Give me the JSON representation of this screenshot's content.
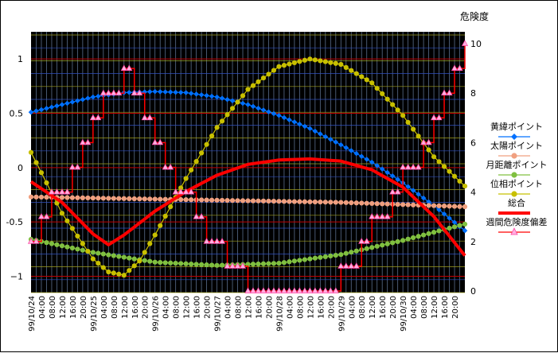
{
  "chart_data": {
    "type": "line",
    "title": "",
    "right_axis_title": "危険度",
    "x_tick_labels": [
      "99/10/24",
      "04:00",
      "08:00",
      "12:00",
      "16:00",
      "20:00",
      "99/10/25",
      "04:00",
      "08:00",
      "12:00",
      "16:00",
      "20:00",
      "99/10/26",
      "04:00",
      "08:00",
      "12:00",
      "16:00",
      "20:00",
      "99/10/27",
      "04:00",
      "08:00",
      "12:00",
      "16:00",
      "20:00",
      "99/10/28",
      "04:00",
      "08:00",
      "12:00",
      "16:00",
      "20:00",
      "99/10/29",
      "04:00",
      "08:00",
      "12:00",
      "16:00",
      "20:00",
      "99/10/30",
      "04:00",
      "08:00",
      "12:00",
      "16:00",
      "20:00"
    ],
    "x_range_hours": [
      0,
      168
    ],
    "left_axis": {
      "min": -1.15,
      "max": 1.25,
      "ticks": [
        -1,
        -0.5,
        0,
        0.5,
        1
      ],
      "tick_labels": [
        "−1",
        "-0.5",
        "0",
        "0.5",
        "1"
      ]
    },
    "right_axis": {
      "min": 0,
      "max": 10,
      "ticks": [
        0,
        2,
        4,
        6,
        8,
        10
      ],
      "tick_labels": [
        "0",
        "2",
        "4",
        "6",
        "8",
        "10"
      ]
    },
    "grid": true,
    "legend_position": "right",
    "series": [
      {
        "name": "黄緯ポイント",
        "axis": "left",
        "color": "#0070FF",
        "marker": "diamond",
        "x": [
          0,
          24,
          36,
          48,
          60,
          72,
          84,
          96,
          108,
          120,
          132,
          144,
          156,
          168
        ],
        "y": [
          0.51,
          0.65,
          0.69,
          0.7,
          0.69,
          0.65,
          0.58,
          0.48,
          0.36,
          0.21,
          0.05,
          -0.14,
          -0.35,
          -0.58
        ]
      },
      {
        "name": "太陽ポイント",
        "axis": "left",
        "color": "#F0A080",
        "marker": "circle",
        "x": [
          0,
          24,
          48,
          72,
          96,
          120,
          144,
          168
        ],
        "y": [
          -0.27,
          -0.28,
          -0.29,
          -0.3,
          -0.31,
          -0.32,
          -0.34,
          -0.36
        ]
      },
      {
        "name": "月距離ポイント",
        "axis": "left",
        "color": "#80C040",
        "marker": "circle",
        "x": [
          0,
          24,
          48,
          72,
          96,
          120,
          144,
          168
        ],
        "y": [
          -0.66,
          -0.78,
          -0.87,
          -0.9,
          -0.88,
          -0.8,
          -0.67,
          -0.52
        ]
      },
      {
        "name": "位相ポイント",
        "axis": "left",
        "color": "#C8C000",
        "marker": "circle",
        "x": [
          0,
          12,
          24,
          30,
          36,
          42,
          48,
          60,
          72,
          84,
          96,
          108,
          120,
          132,
          144,
          156,
          168
        ],
        "y": [
          0.14,
          -0.42,
          -0.84,
          -0.96,
          -0.99,
          -0.86,
          -0.62,
          -0.1,
          0.37,
          0.72,
          0.93,
          1.0,
          0.95,
          0.78,
          0.48,
          0.1,
          -0.17
        ]
      },
      {
        "name": "総合",
        "axis": "left",
        "color": "#FF0000",
        "marker": "none",
        "x": [
          0,
          12,
          24,
          30,
          36,
          48,
          60,
          72,
          84,
          96,
          108,
          120,
          132,
          144,
          156,
          168
        ],
        "y": [
          -0.13,
          -0.32,
          -0.61,
          -0.71,
          -0.62,
          -0.4,
          -0.22,
          -0.07,
          0.03,
          0.07,
          0.08,
          0.06,
          -0.02,
          -0.18,
          -0.45,
          -0.81
        ]
      },
      {
        "name": "週間危険度偏差",
        "axis": "right",
        "color": "#FF0000",
        "marker_fill": "#FFB0E0",
        "marker": "triangle",
        "step": true,
        "x": [
          0,
          4,
          8,
          12,
          16,
          20,
          24,
          28,
          32,
          36,
          40,
          44,
          48,
          52,
          56,
          60,
          64,
          68,
          72,
          76,
          80,
          84,
          88,
          92,
          96,
          100,
          104,
          108,
          112,
          116,
          120,
          124,
          128,
          132,
          136,
          140,
          144,
          148,
          152,
          156,
          160,
          164,
          168
        ],
        "y": [
          2.0,
          3.0,
          4.0,
          4.0,
          5.0,
          6.0,
          7.0,
          8.0,
          8.0,
          9.0,
          8.0,
          7.0,
          6.0,
          5.0,
          4.0,
          4.0,
          3.0,
          2.0,
          2.0,
          1.0,
          1.0,
          0.0,
          0.0,
          0.0,
          0.0,
          0.0,
          0.0,
          0.0,
          0.0,
          0.0,
          1.0,
          1.0,
          2.0,
          3.0,
          3.0,
          4.0,
          5.0,
          5.0,
          6.0,
          7.0,
          8.0,
          9.0,
          10.0
        ]
      }
    ]
  }
}
